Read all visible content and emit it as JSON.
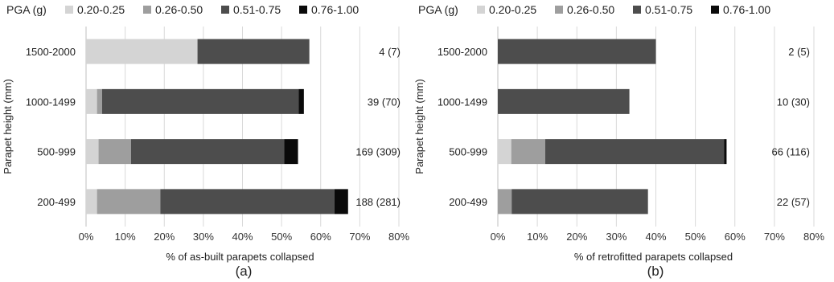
{
  "chart_data": [
    {
      "panel_label": "(a)",
      "type": "bar",
      "orientation": "horizontal",
      "stacked": true,
      "legend_title": "PGA (g)",
      "legend_position": "top",
      "categories": [
        "1500-2000",
        "1000-1499",
        "500-999",
        "200-499"
      ],
      "series": [
        {
          "name": "0.20-0.25",
          "color": "#d4d4d4",
          "values": [
            28.5,
            2.8,
            3.2,
            2.8
          ]
        },
        {
          "name": "0.26-0.50",
          "color": "#9e9e9e",
          "values": [
            0,
            1.3,
            8.3,
            16.2
          ]
        },
        {
          "name": "0.51-0.75",
          "color": "#4d4d4d",
          "values": [
            28.6,
            50.3,
            39.2,
            44.5
          ]
        },
        {
          "name": "0.76-1.00",
          "color": "#0a0a0a",
          "values": [
            0,
            1.3,
            3.5,
            3.5
          ]
        }
      ],
      "annotations": [
        "4 (7)",
        "39 (70)",
        "169 (309)",
        "188 (281)"
      ],
      "xlabel": "% of as-built parapets collapsed",
      "ylabel": "Parapet height (mm)",
      "xlim": [
        0,
        80
      ],
      "xticks": [
        "0%",
        "10%",
        "20%",
        "30%",
        "40%",
        "50%",
        "60%",
        "70%",
        "80%"
      ],
      "grid": "vertical"
    },
    {
      "panel_label": "(b)",
      "type": "bar",
      "orientation": "horizontal",
      "stacked": true,
      "legend_title": "PGA (g)",
      "legend_position": "top",
      "categories": [
        "1500-2000",
        "1000-1499",
        "500-999",
        "200-499"
      ],
      "series": [
        {
          "name": "0.20-0.25",
          "color": "#d4d4d4",
          "values": [
            0,
            0,
            3.4,
            0
          ]
        },
        {
          "name": "0.26-0.50",
          "color": "#9e9e9e",
          "values": [
            0,
            0,
            8.6,
            3.5
          ]
        },
        {
          "name": "0.51-0.75",
          "color": "#4d4d4d",
          "values": [
            40,
            33.3,
            45.3,
            34.5
          ]
        },
        {
          "name": "0.76-1.00",
          "color": "#0a0a0a",
          "values": [
            0,
            0,
            0.6,
            0
          ]
        }
      ],
      "annotations": [
        "2 (5)",
        "10 (30)",
        "66 (116)",
        "22 (57)"
      ],
      "xlabel": "% of retrofitted parapets collapsed",
      "ylabel": "Parapet height (mm)",
      "xlim": [
        0,
        80
      ],
      "xticks": [
        "0%",
        "10%",
        "20%",
        "30%",
        "40%",
        "50%",
        "60%",
        "70%",
        "80%"
      ],
      "grid": "vertical"
    }
  ]
}
